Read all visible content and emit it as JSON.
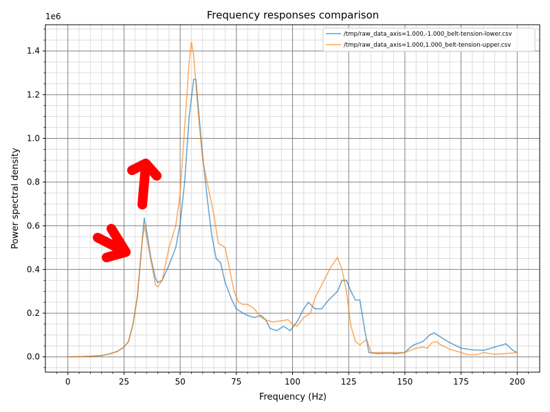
{
  "chart_data": {
    "type": "line",
    "title": "Frequency responses comparison",
    "xlabel": "Frequency (Hz)",
    "ylabel": "Power spectral density",
    "y_multiplier_label": "1e6",
    "xlim": [
      -10,
      210
    ],
    "ylim": [
      -0.07,
      1.52
    ],
    "x_ticks": [
      0,
      25,
      50,
      75,
      100,
      125,
      150,
      175,
      200
    ],
    "y_ticks": [
      0.0,
      0.2,
      0.4,
      0.6,
      0.8,
      1.0,
      1.2,
      1.4
    ],
    "y_tick_labels": [
      "0.0",
      "0.2",
      "0.4",
      "0.6",
      "0.8",
      "1.0",
      "1.2",
      "1.4"
    ],
    "grid": true,
    "minor_grid": true,
    "legend_position": "top-right",
    "series": [
      {
        "name": "/tmp/raw_data_axis=1.000,-1.000_belt-tension-lower.csv",
        "color": "#1f77b4",
        "points": [
          [
            0,
            0.0
          ],
          [
            5,
            0.001
          ],
          [
            10,
            0.003
          ],
          [
            15,
            0.006
          ],
          [
            18,
            0.012
          ],
          [
            22,
            0.025
          ],
          [
            25,
            0.045
          ],
          [
            27,
            0.07
          ],
          [
            29,
            0.15
          ],
          [
            31,
            0.28
          ],
          [
            33,
            0.52
          ],
          [
            34,
            0.635
          ],
          [
            35,
            0.58
          ],
          [
            37,
            0.45
          ],
          [
            39,
            0.36
          ],
          [
            40,
            0.34
          ],
          [
            42,
            0.35
          ],
          [
            45,
            0.42
          ],
          [
            48,
            0.5
          ],
          [
            50,
            0.61
          ],
          [
            52,
            0.8
          ],
          [
            54,
            1.1
          ],
          [
            56,
            1.27
          ],
          [
            57,
            1.27
          ],
          [
            58,
            1.15
          ],
          [
            60,
            0.92
          ],
          [
            62,
            0.73
          ],
          [
            64,
            0.56
          ],
          [
            66,
            0.45
          ],
          [
            68,
            0.43
          ],
          [
            70,
            0.34
          ],
          [
            73,
            0.26
          ],
          [
            75,
            0.22
          ],
          [
            78,
            0.2
          ],
          [
            80,
            0.19
          ],
          [
            83,
            0.18
          ],
          [
            86,
            0.19
          ],
          [
            88,
            0.17
          ],
          [
            90,
            0.13
          ],
          [
            93,
            0.12
          ],
          [
            96,
            0.14
          ],
          [
            99,
            0.12
          ],
          [
            102,
            0.16
          ],
          [
            105,
            0.22
          ],
          [
            107,
            0.25
          ],
          [
            110,
            0.22
          ],
          [
            113,
            0.22
          ],
          [
            116,
            0.26
          ],
          [
            120,
            0.3
          ],
          [
            122,
            0.35
          ],
          [
            124,
            0.35
          ],
          [
            126,
            0.3
          ],
          [
            128,
            0.26
          ],
          [
            130,
            0.26
          ],
          [
            132,
            0.13
          ],
          [
            134,
            0.02
          ],
          [
            138,
            0.015
          ],
          [
            142,
            0.017
          ],
          [
            146,
            0.015
          ],
          [
            150,
            0.02
          ],
          [
            152,
            0.04
          ],
          [
            154,
            0.055
          ],
          [
            158,
            0.07
          ],
          [
            161,
            0.1
          ],
          [
            163,
            0.11
          ],
          [
            166,
            0.09
          ],
          [
            170,
            0.065
          ],
          [
            175,
            0.04
          ],
          [
            180,
            0.032
          ],
          [
            185,
            0.03
          ],
          [
            190,
            0.045
          ],
          [
            195,
            0.06
          ],
          [
            198,
            0.03
          ],
          [
            200,
            0.02
          ]
        ]
      },
      {
        "name": "/tmp/raw_data_axis=1.000,1.000_belt-tension-upper.csv",
        "color": "#ff7f0e",
        "points": [
          [
            0,
            0.0
          ],
          [
            5,
            0.001
          ],
          [
            10,
            0.003
          ],
          [
            15,
            0.006
          ],
          [
            18,
            0.012
          ],
          [
            22,
            0.025
          ],
          [
            25,
            0.045
          ],
          [
            27,
            0.07
          ],
          [
            29,
            0.15
          ],
          [
            31,
            0.28
          ],
          [
            33,
            0.52
          ],
          [
            34,
            0.6
          ],
          [
            35,
            0.55
          ],
          [
            37,
            0.44
          ],
          [
            39,
            0.33
          ],
          [
            40,
            0.32
          ],
          [
            42,
            0.35
          ],
          [
            45,
            0.5
          ],
          [
            48,
            0.6
          ],
          [
            50,
            0.75
          ],
          [
            52,
            1.05
          ],
          [
            54,
            1.35
          ],
          [
            55,
            1.44
          ],
          [
            56,
            1.38
          ],
          [
            58,
            1.12
          ],
          [
            60,
            0.9
          ],
          [
            63,
            0.75
          ],
          [
            65,
            0.65
          ],
          [
            67,
            0.52
          ],
          [
            70,
            0.5
          ],
          [
            72,
            0.4
          ],
          [
            74,
            0.3
          ],
          [
            76,
            0.25
          ],
          [
            78,
            0.24
          ],
          [
            80,
            0.24
          ],
          [
            83,
            0.22
          ],
          [
            86,
            0.18
          ],
          [
            88,
            0.17
          ],
          [
            91,
            0.16
          ],
          [
            95,
            0.165
          ],
          [
            98,
            0.17
          ],
          [
            100,
            0.15
          ],
          [
            102,
            0.14
          ],
          [
            105,
            0.18
          ],
          [
            108,
            0.2
          ],
          [
            110,
            0.27
          ],
          [
            113,
            0.33
          ],
          [
            117,
            0.41
          ],
          [
            120,
            0.455
          ],
          [
            122,
            0.4
          ],
          [
            124,
            0.3
          ],
          [
            126,
            0.14
          ],
          [
            128,
            0.07
          ],
          [
            130,
            0.055
          ],
          [
            133,
            0.08
          ],
          [
            135,
            0.02
          ],
          [
            140,
            0.02
          ],
          [
            145,
            0.02
          ],
          [
            150,
            0.02
          ],
          [
            155,
            0.04
          ],
          [
            158,
            0.045
          ],
          [
            160,
            0.04
          ],
          [
            162,
            0.065
          ],
          [
            164,
            0.07
          ],
          [
            166,
            0.055
          ],
          [
            170,
            0.035
          ],
          [
            175,
            0.02
          ],
          [
            178,
            0.01
          ],
          [
            182,
            0.01
          ],
          [
            185,
            0.02
          ],
          [
            190,
            0.012
          ],
          [
            195,
            0.015
          ],
          [
            200,
            0.02
          ]
        ]
      }
    ]
  }
}
